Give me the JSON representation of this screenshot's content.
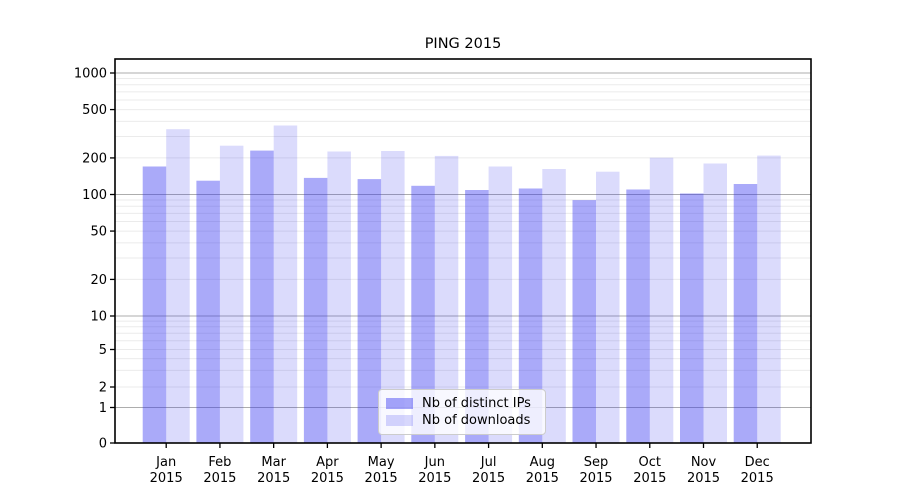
{
  "chart_data": {
    "type": "bar",
    "title": "PING 2015",
    "x_axis": {
      "categories": [
        "Jan",
        "Feb",
        "Mar",
        "Apr",
        "May",
        "Jun",
        "Jul",
        "Aug",
        "Sep",
        "Oct",
        "Nov",
        "Dec"
      ],
      "sublabel": "2015"
    },
    "y_axis": {
      "scale": "symlog",
      "ticks": [
        0,
        1,
        2,
        5,
        10,
        20,
        50,
        100,
        200,
        500,
        1000
      ],
      "major_lines": [
        1,
        10,
        100,
        1000
      ],
      "range": [
        0,
        1000
      ]
    },
    "grid": {
      "major": true,
      "minor": true,
      "major_color": "#adadad",
      "minor_color": "#ebebeb"
    },
    "spine_color": "#000000",
    "legend": {
      "position": "lower-center"
    },
    "series": [
      {
        "name": "Nb of distinct IPs",
        "color": "#2b2bf0",
        "opacity": 0.4,
        "values": [
          170,
          130,
          230,
          137,
          134,
          118,
          109,
          112,
          90,
          110,
          102,
          122
        ]
      },
      {
        "name": "Nb of downloads",
        "color": "#2b2bf0",
        "opacity": 0.17,
        "values": [
          345,
          252,
          370,
          226,
          228,
          208,
          170,
          162,
          154,
          201,
          180,
          209
        ]
      }
    ]
  }
}
